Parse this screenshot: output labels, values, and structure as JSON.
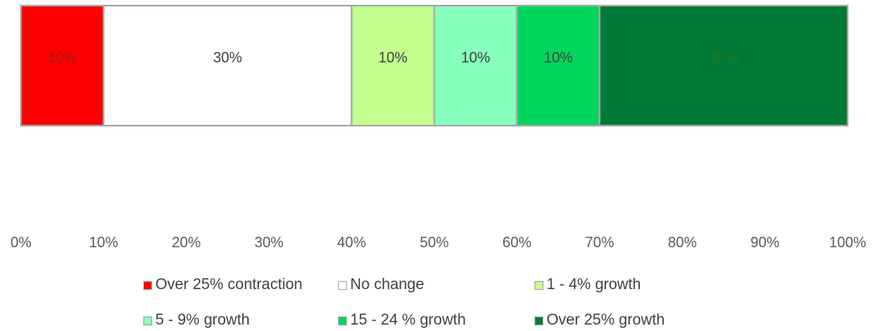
{
  "chart_data": {
    "type": "bar",
    "orientation": "horizontal",
    "stacked": true,
    "categories": [
      ""
    ],
    "series": [
      {
        "name": "Over 25% contraction",
        "values": [
          10
        ],
        "color": "#ff0000",
        "label": "10%",
        "label_color": "#9b1b1b"
      },
      {
        "name": "No change",
        "values": [
          30
        ],
        "color": "#ffffff",
        "label": "30%",
        "label_color": "#404040"
      },
      {
        "name": "1 - 4% growth",
        "values": [
          10
        ],
        "color": "#c2ff8f",
        "label": "10%",
        "label_color": "#404040"
      },
      {
        "name": "5 - 9% growth",
        "values": [
          10
        ],
        "color": "#87ffbd",
        "label": "10%",
        "label_color": "#404040"
      },
      {
        "name": "15 - 24 % growth",
        "values": [
          10
        ],
        "color": "#00d65e",
        "label": "10%",
        "label_color": "#404040"
      },
      {
        "name": "Over 25% growth",
        "values": [
          30
        ],
        "color": "#007a36",
        "label": "30%",
        "label_color": "#1f7a1f"
      }
    ],
    "xlim": [
      0,
      100
    ],
    "x_ticks": [
      "0%",
      "10%",
      "20%",
      "30%",
      "40%",
      "50%",
      "60%",
      "70%",
      "80%",
      "90%",
      "100%"
    ],
    "grid": false,
    "legend_placement": "bottom",
    "title": "",
    "xlabel": "",
    "ylabel": ""
  },
  "legend": [
    {
      "label": "Over 25% contraction",
      "color": "#ff0000"
    },
    {
      "label": "No change",
      "color": "#ffffff"
    },
    {
      "label": "1 - 4% growth",
      "color": "#c2ff8f"
    },
    {
      "label": "5 - 9% growth",
      "color": "#87ffbd"
    },
    {
      "label": "15 - 24 % growth",
      "color": "#00d65e"
    },
    {
      "label": "Over 25% growth",
      "color": "#007a36"
    }
  ]
}
